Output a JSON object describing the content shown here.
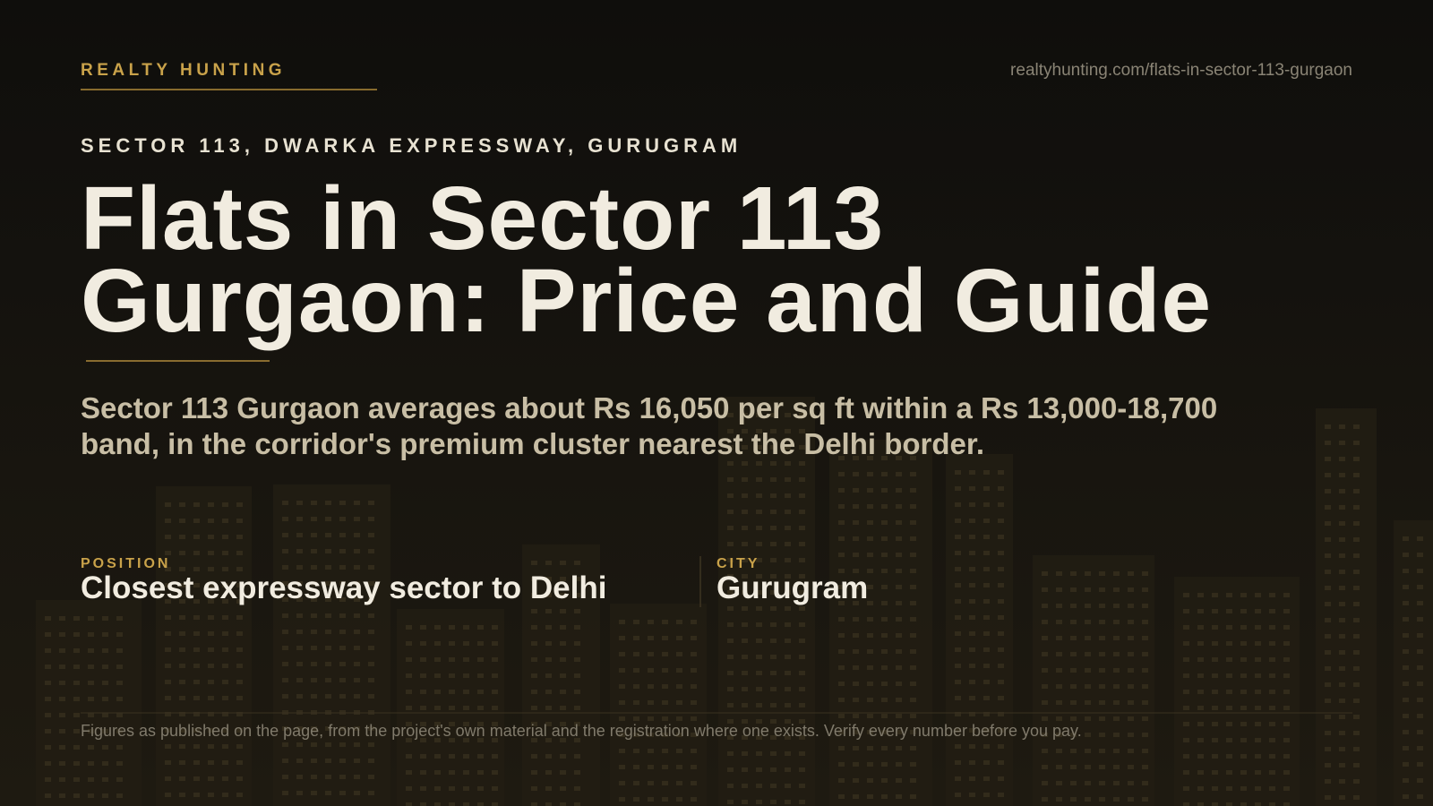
{
  "header": {
    "brand": "REALTY HUNTING",
    "url": "realtyhunting.com/flats-in-sector-113-gurgaon"
  },
  "hero": {
    "eyebrow": "SECTOR 113, DWARKA EXPRESSWAY, GURUGRAM",
    "title_lines": [
      "Flats in Sector 113",
      "Gurgaon: Price and Guide"
    ],
    "summary_lines": [
      "Sector 113 Gurgaon averages about Rs 16,050 per sq ft within a Rs 13,000-18,700",
      "band, in the corridor's premium cluster nearest the Delhi border."
    ]
  },
  "facts": [
    {
      "label": "POSITION",
      "value": "Closest expressway sector to Delhi"
    },
    {
      "label": "CITY",
      "value": "Gurugram"
    }
  ],
  "footer": {
    "note": "Figures as published on the page, from the project's own material and the registration where one exists. Verify every number before you pay."
  }
}
